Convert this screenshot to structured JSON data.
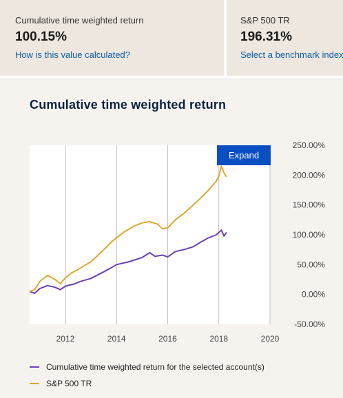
{
  "cards": [
    {
      "label": "Cumulative time weighted return",
      "value": "100.15%",
      "link": "How is this value calculated?"
    },
    {
      "label": "S&P 500 TR",
      "value": "196.31%",
      "link": "Select a benchmark index"
    }
  ],
  "panel": {
    "title": "Cumulative time weighted return",
    "expand_label": "Expand"
  },
  "colors": {
    "account": "#6a3fb8",
    "benchmark": "#e0a52a",
    "expand_button": "#0a4fc2",
    "link": "#0b5ea8"
  },
  "chart_data": {
    "type": "line",
    "xlim": [
      2010.6,
      2020
    ],
    "ylim": [
      -50,
      250
    ],
    "x_ticks": [
      "2012",
      "2014",
      "2016",
      "2018",
      "2020"
    ],
    "y_ticks": [
      "250.00%",
      "200.00%",
      "150.00%",
      "100.00%",
      "50.00%",
      "0.00%",
      "-50.00%"
    ],
    "grid": "vertical",
    "legend_position": "bottom",
    "series": [
      {
        "name": "Cumulative time weighted return for the selected account(s)",
        "color": "#6a3fb8",
        "x": [
          2010.6,
          2010.8,
          2011.0,
          2011.3,
          2011.6,
          2011.8,
          2012.0,
          2012.3,
          2012.6,
          2013.0,
          2013.5,
          2013.8,
          2014.0,
          2014.5,
          2015.0,
          2015.3,
          2015.5,
          2015.8,
          2016.0,
          2016.3,
          2016.7,
          2017.0,
          2017.3,
          2017.6,
          2017.9,
          2018.1,
          2018.2,
          2018.3
        ],
        "y": [
          5,
          2,
          10,
          15,
          12,
          8,
          14,
          17,
          22,
          27,
          38,
          45,
          50,
          55,
          62,
          70,
          64,
          66,
          63,
          72,
          76,
          80,
          88,
          95,
          100,
          108,
          98,
          104
        ]
      },
      {
        "name": "S&P 500 TR",
        "color": "#e0a52a",
        "x": [
          2010.6,
          2010.8,
          2011.0,
          2011.3,
          2011.6,
          2011.8,
          2012.0,
          2012.2,
          2012.5,
          2013.0,
          2013.5,
          2013.8,
          2014.0,
          2014.3,
          2014.7,
          2015.0,
          2015.3,
          2015.6,
          2015.8,
          2016.0,
          2016.3,
          2016.6,
          2017.0,
          2017.3,
          2017.6,
          2017.9,
          2018.0,
          2018.1,
          2018.2,
          2018.3
        ],
        "y": [
          5,
          8,
          22,
          32,
          25,
          18,
          28,
          35,
          42,
          55,
          75,
          88,
          95,
          105,
          115,
          120,
          122,
          118,
          110,
          112,
          125,
          135,
          150,
          162,
          175,
          190,
          198,
          215,
          204,
          197
        ]
      }
    ]
  }
}
